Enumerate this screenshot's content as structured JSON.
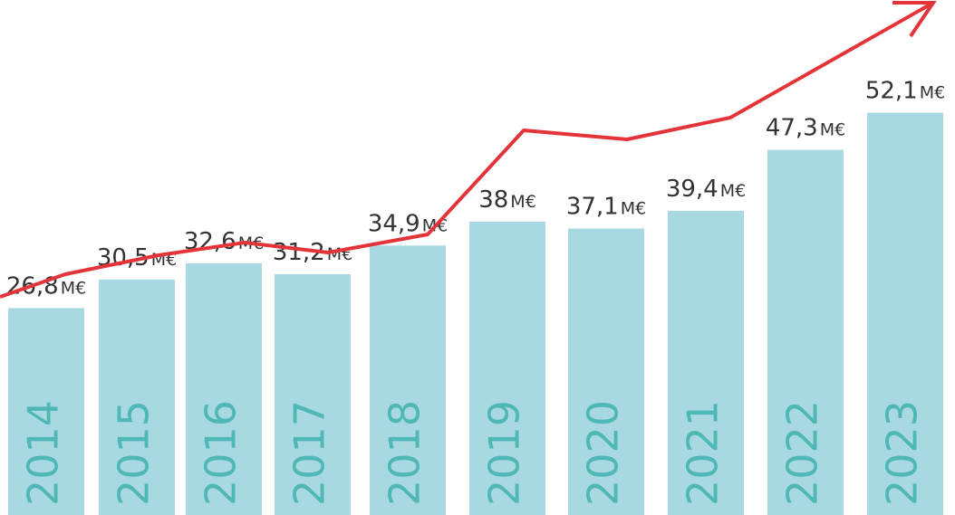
{
  "colors": {
    "bar": "#a8d8e2",
    "year_text": "#4fb8b4",
    "trend_line": "#e3343a",
    "value_text": "#333333"
  },
  "chart_data": {
    "type": "bar",
    "categories": [
      "2014",
      "2015",
      "2016",
      "2017",
      "2018",
      "2019",
      "2020",
      "2021",
      "2022",
      "2023"
    ],
    "values": [
      26.8,
      30.5,
      32.6,
      31.2,
      34.9,
      38,
      37.1,
      39.4,
      47.3,
      52.1
    ],
    "value_labels": [
      "26,8",
      "30,5",
      "32,6",
      "31,2",
      "34,9",
      "38",
      "37,1",
      "39,4",
      "47,3",
      "52,1"
    ],
    "unit": "M€",
    "title": "",
    "xlabel": "",
    "ylabel": "",
    "ylim": [
      0,
      55
    ],
    "grid": false,
    "legend": "none",
    "trend_line": {
      "style": "arrow",
      "follows": "values"
    }
  }
}
